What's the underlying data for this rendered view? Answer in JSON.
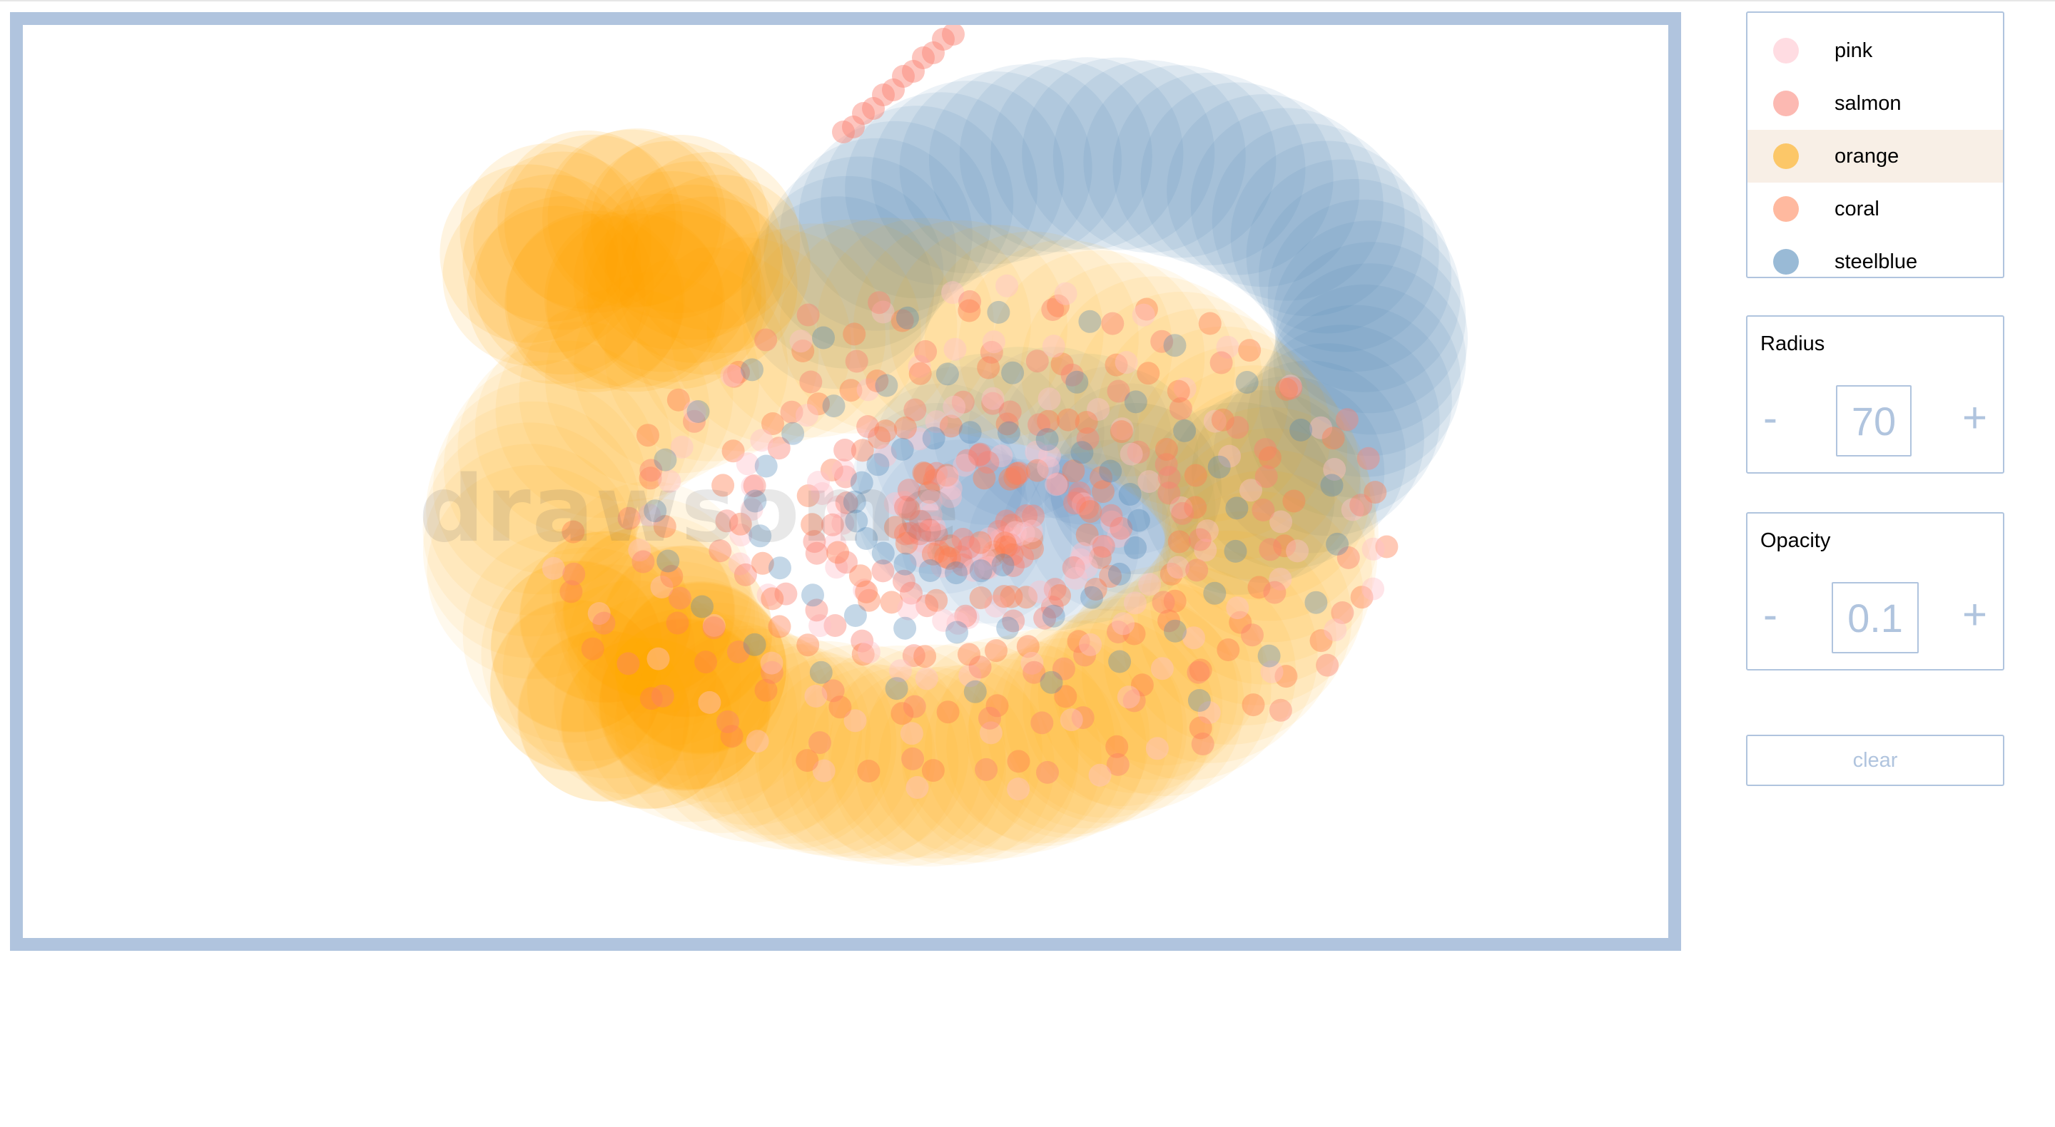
{
  "canvas": {
    "watermark": "drawsome",
    "frame_color": "#b0c4de"
  },
  "palette": {
    "items": [
      {
        "label": "pink",
        "color": "#ffc0cb",
        "selected": false
      },
      {
        "label": "salmon",
        "color": "#fa8072",
        "selected": false
      },
      {
        "label": "orange",
        "color": "#ffa500",
        "selected": true
      },
      {
        "label": "coral",
        "color": "#ff7f50",
        "selected": false
      },
      {
        "label": "steelblue",
        "color": "#4682b4",
        "selected": false
      }
    ]
  },
  "radius": {
    "title": "Radius",
    "value": "70",
    "minus_label": "-",
    "plus_label": "+"
  },
  "opacity": {
    "title": "Opacity",
    "value": "0.1",
    "minus_label": "-",
    "plus_label": "+"
  },
  "clear": {
    "label": "clear"
  }
}
